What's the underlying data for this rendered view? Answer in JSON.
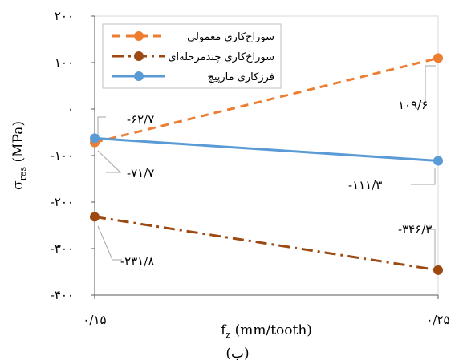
{
  "chart_data": {
    "type": "line",
    "x": [
      0.15,
      0.25
    ],
    "x_tick_labels": [
      "۰/۱۵",
      "۰/۲۵"
    ],
    "xlabel": "f",
    "xlabel_sub": "z",
    "xlabel_rest": " (mm/tooth)",
    "ylabel": "σ",
    "ylabel_sub": "res",
    "ylabel_rest": " (MPa)",
    "ylim": [
      -400,
      200
    ],
    "y_ticks": [
      200,
      100,
      0,
      -100,
      -200,
      -300,
      -400
    ],
    "y_tick_labels": [
      "۲۰۰",
      "۱۰۰",
      "۰",
      "-۱۰۰",
      "-۲۰۰",
      "-۳۰۰",
      "-۴۰۰"
    ],
    "caption": "(ب)",
    "legend_position": "top-left",
    "grid": false,
    "series": [
      {
        "name": "سوراخ‌کاری معمولی",
        "values": [
          -71.7,
          109.6
        ],
        "color": "#ED7D31",
        "dash": "dashed",
        "labels": [
          "-۷۱/۷",
          "۱۰۹/۶"
        ]
      },
      {
        "name": "سوراخ‌کاری چندمرحله‌ای",
        "values": [
          -231.8,
          -346.3
        ],
        "color": "#9C4A12",
        "dash": "dashdot",
        "labels": [
          "-۲۳۱/۸",
          "-۳۴۶/۳"
        ]
      },
      {
        "name": "فرزکاری مارپیچ",
        "values": [
          -62.7,
          -111.3
        ],
        "color": "#5B9BD5",
        "dash": "solid",
        "labels": [
          "-۶۲/۷",
          "-۱۱۱/۳"
        ]
      }
    ]
  }
}
